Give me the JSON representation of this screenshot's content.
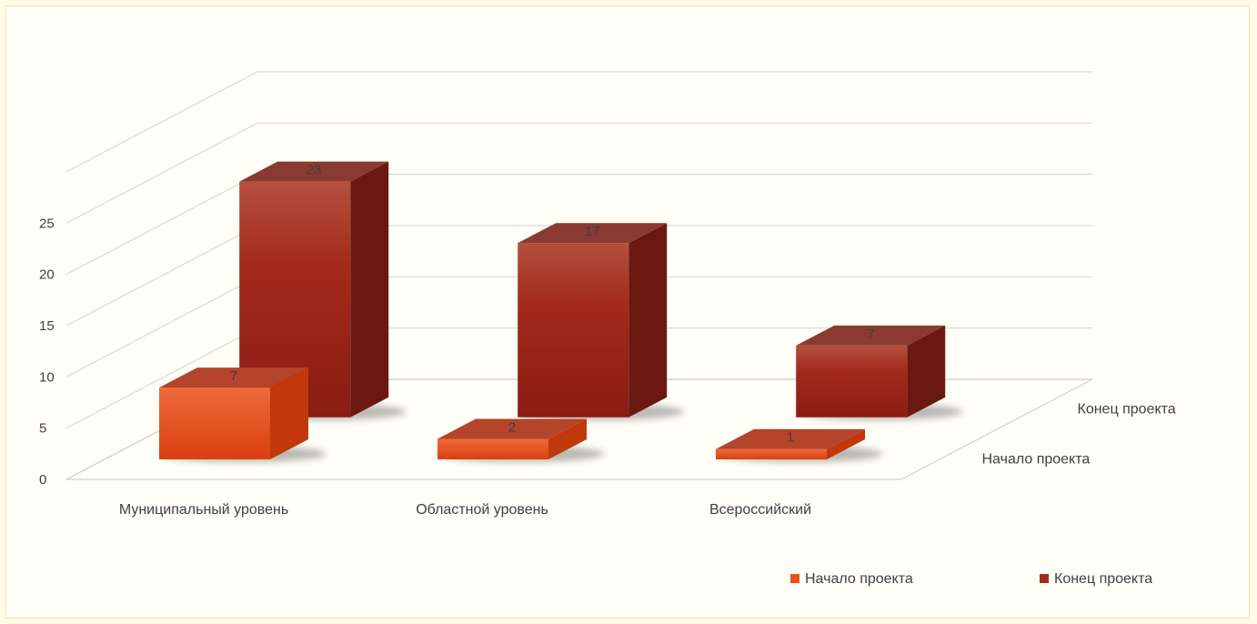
{
  "chart_data": {
    "type": "bar",
    "title": "",
    "xlabel": "",
    "ylabel": "",
    "categories": [
      "Муниципальный уровень",
      "Областной уровень",
      "Всероссийский"
    ],
    "series": [
      {
        "name": "Начало проекта",
        "values": [
          7,
          2,
          1
        ],
        "color": "#e8501e"
      },
      {
        "name": "Конец проекта",
        "values": [
          23,
          17,
          7
        ],
        "color": "#a52a1e"
      }
    ],
    "ylim": [
      0,
      25
    ],
    "y_ticks": [
      0,
      5,
      10,
      15,
      20,
      25
    ],
    "depth_labels": [
      "Начало проекта",
      "Конец проекта"
    ],
    "grid": true,
    "legend_position": "bottom-right",
    "data_labels": true
  }
}
